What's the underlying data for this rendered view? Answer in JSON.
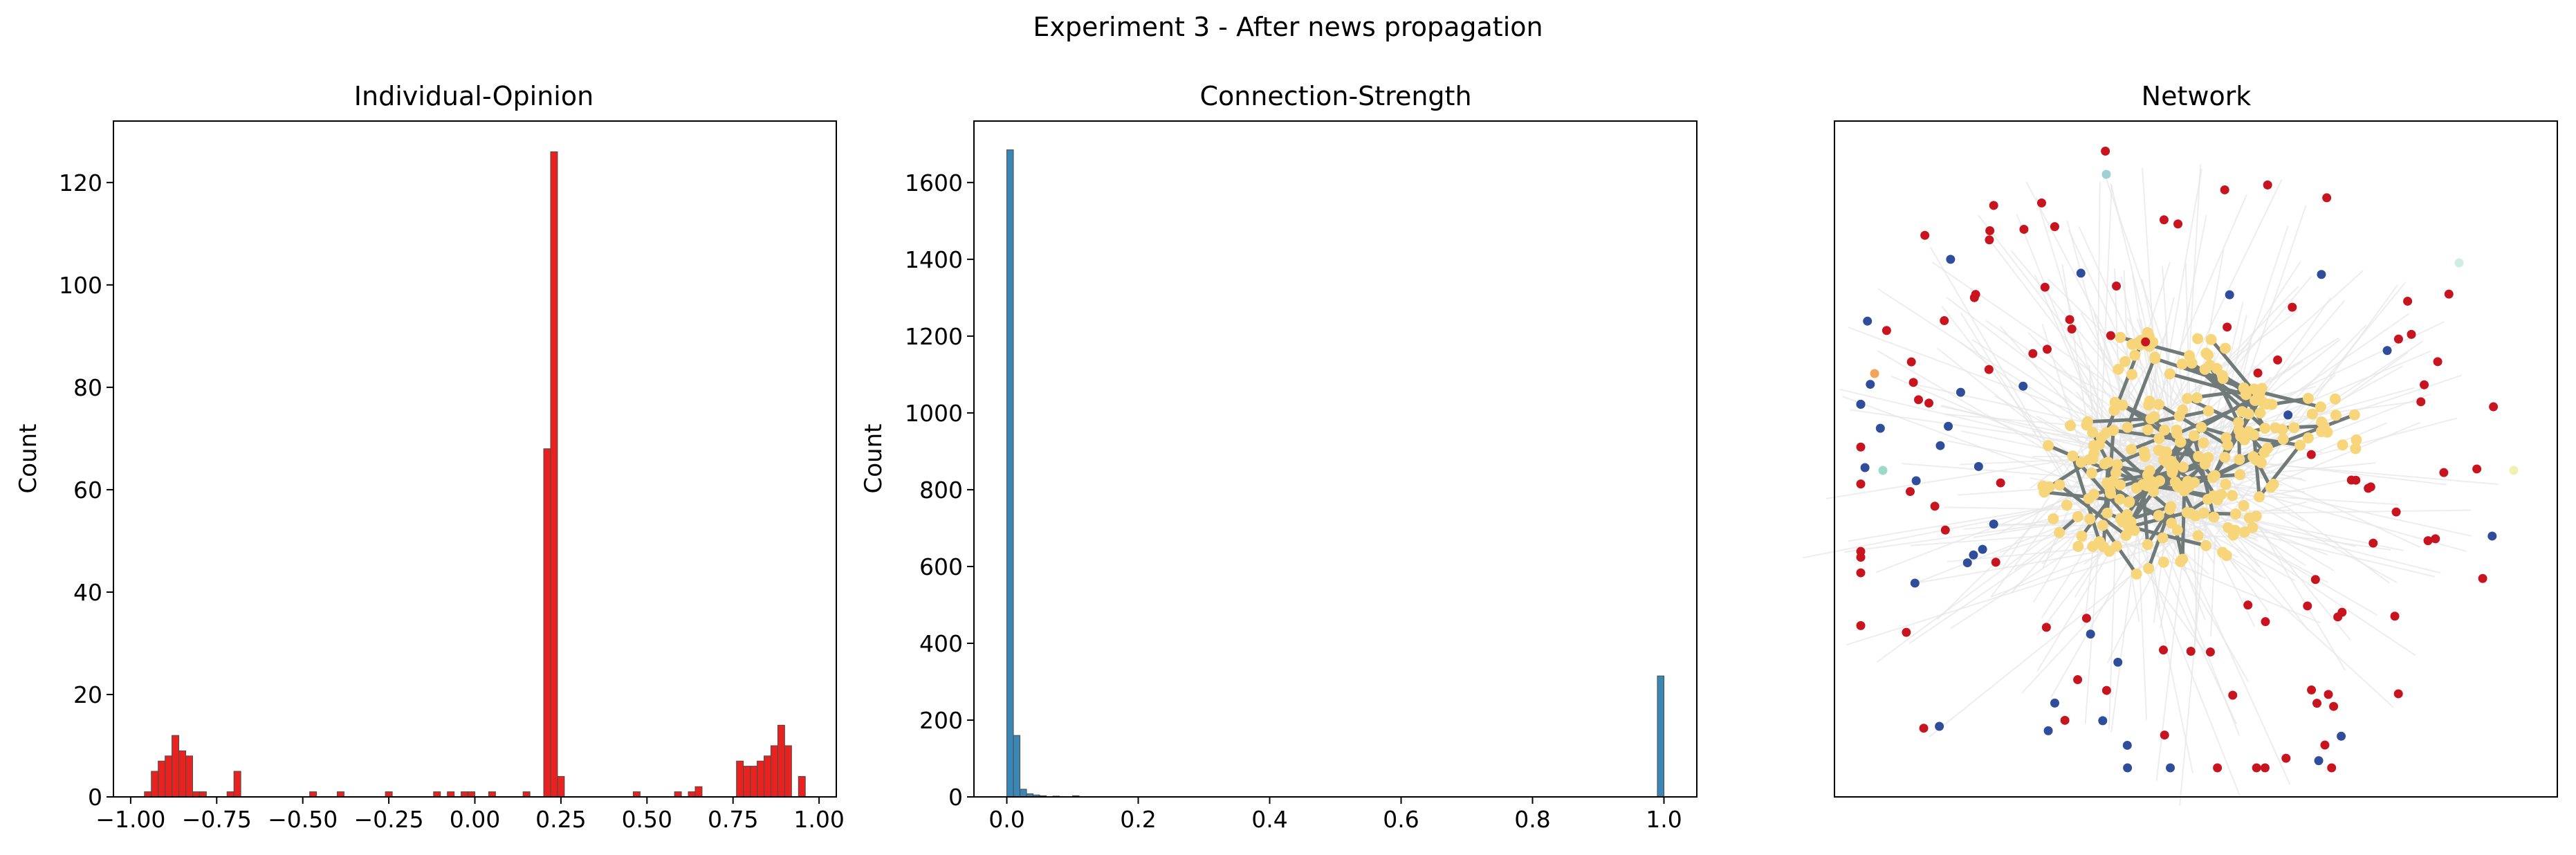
{
  "figure_title": "Experiment 3 - After news propagation",
  "colors": {
    "opinion_bar": "#e8231f",
    "strength_bar": "#3a87b6",
    "bar_edge": "#4a4a4a",
    "net_red": "#c8141e",
    "net_blue": "#2f4d9a",
    "net_yellow": "#f7d57a",
    "net_edge_dark": "#707a78",
    "net_edge_light": "#e6e6e6"
  },
  "chart_data": [
    {
      "type": "bar",
      "title": "Individual-Opinion",
      "xlabel": "",
      "ylabel": "Count",
      "xlim": [
        -1.05,
        1.05
      ],
      "ylim": [
        0,
        132
      ],
      "xticks": [
        "-1.00",
        "-0.75",
        "-0.50",
        "-0.25",
        "0.00",
        "0.25",
        "0.50",
        "0.75",
        "1.00"
      ],
      "yticks": [
        "0",
        "20",
        "40",
        "60",
        "80",
        "100",
        "120"
      ],
      "bin_width": 0.02,
      "bins": [
        [
          -0.96,
          1
        ],
        [
          -0.94,
          5
        ],
        [
          -0.92,
          7
        ],
        [
          -0.9,
          8
        ],
        [
          -0.88,
          12
        ],
        [
          -0.86,
          9
        ],
        [
          -0.84,
          8
        ],
        [
          -0.82,
          1
        ],
        [
          -0.8,
          1
        ],
        [
          -0.72,
          1
        ],
        [
          -0.7,
          5
        ],
        [
          -0.48,
          1
        ],
        [
          -0.4,
          1
        ],
        [
          -0.26,
          1
        ],
        [
          -0.12,
          1
        ],
        [
          -0.08,
          1
        ],
        [
          -0.04,
          1
        ],
        [
          -0.02,
          1
        ],
        [
          0.04,
          1
        ],
        [
          0.14,
          1
        ],
        [
          0.2,
          68
        ],
        [
          0.22,
          126
        ],
        [
          0.24,
          4
        ],
        [
          0.46,
          1
        ],
        [
          0.58,
          1
        ],
        [
          0.62,
          1
        ],
        [
          0.64,
          2
        ],
        [
          0.76,
          7
        ],
        [
          0.78,
          6
        ],
        [
          0.8,
          6
        ],
        [
          0.82,
          7
        ],
        [
          0.84,
          8
        ],
        [
          0.86,
          10
        ],
        [
          0.88,
          14
        ],
        [
          0.9,
          10
        ],
        [
          0.94,
          4
        ]
      ]
    },
    {
      "type": "bar",
      "title": "Connection-Strength",
      "xlabel": "",
      "ylabel": "Count",
      "xlim": [
        -0.05,
        1.05
      ],
      "ylim": [
        0,
        1760
      ],
      "xticks": [
        "0.0",
        "0.2",
        "0.4",
        "0.6",
        "0.8",
        "1.0"
      ],
      "yticks": [
        "0",
        "200",
        "400",
        "600",
        "800",
        "1000",
        "1200",
        "1400",
        "1600"
      ],
      "bin_width": 0.01,
      "bins": [
        [
          0.0,
          1685
        ],
        [
          0.01,
          160
        ],
        [
          0.02,
          20
        ],
        [
          0.03,
          8
        ],
        [
          0.04,
          5
        ],
        [
          0.05,
          3
        ],
        [
          0.07,
          2
        ],
        [
          0.08,
          1
        ],
        [
          0.1,
          3
        ],
        [
          0.99,
          315
        ]
      ]
    },
    {
      "type": "scatter",
      "title": "Network",
      "xlabel": "",
      "ylabel": "",
      "axes_ticks": "none"
    }
  ]
}
